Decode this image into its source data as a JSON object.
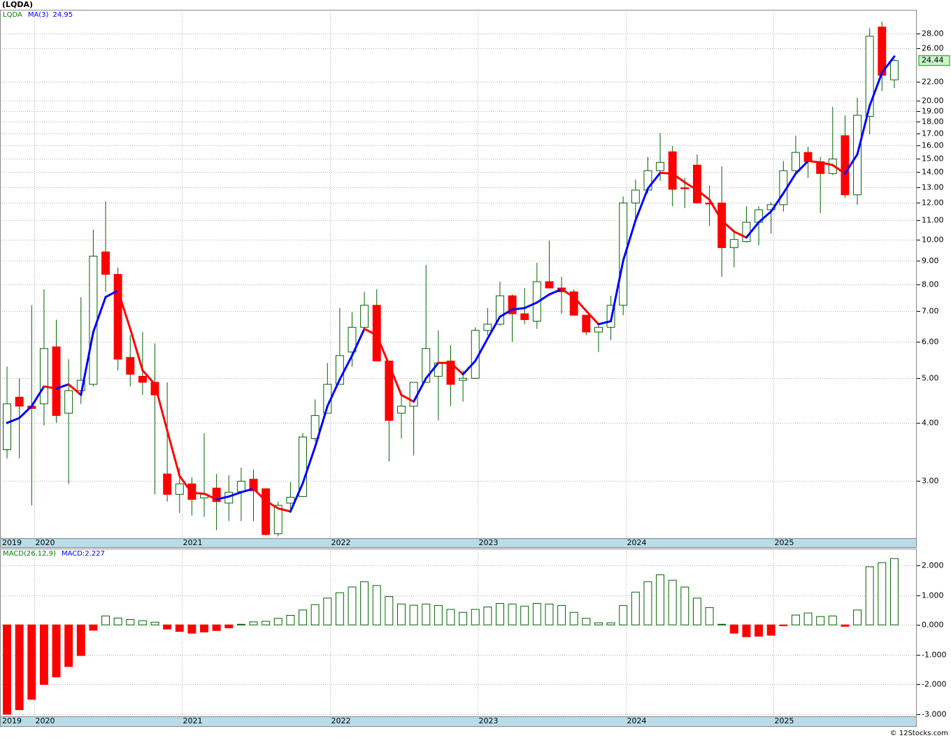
{
  "chart_data": [
    {
      "type": "candlestick",
      "title": "(LQDA)",
      "ticker": "LQDA",
      "ticker_color": "#008000",
      "log": true,
      "grid": true,
      "candle_colors": {
        "up": "#ffffff",
        "down": "#ff0000",
        "edge": "#006400"
      },
      "xlim": [
        -0.57,
        73.82
      ],
      "xticks": [
        {
          "value": 0,
          "label": "2019"
        },
        {
          "value": 3,
          "label": "2020"
        },
        {
          "value": 15,
          "label": "2021"
        },
        {
          "value": 27,
          "label": "2022"
        },
        {
          "value": 39,
          "label": "2023"
        },
        {
          "value": 51,
          "label": "2024"
        },
        {
          "value": 63,
          "label": "2025"
        }
      ],
      "ylim": [
        2.25,
        31.5
      ],
      "yticks": [
        {
          "value": 3,
          "label": "3.00"
        },
        {
          "value": 4,
          "label": "4.00"
        },
        {
          "value": 5,
          "label": "5.00"
        },
        {
          "value": 6,
          "label": "6.00"
        },
        {
          "value": 7,
          "label": "7.00"
        },
        {
          "value": 8,
          "label": "8.00"
        },
        {
          "value": 9,
          "label": "9.00"
        },
        {
          "value": 10,
          "label": "10.00"
        },
        {
          "value": 11,
          "label": "11.00"
        },
        {
          "value": 12,
          "label": "12.00"
        },
        {
          "value": 13,
          "label": "13.00"
        },
        {
          "value": 14,
          "label": "14.00"
        },
        {
          "value": 15,
          "label": "15.00"
        },
        {
          "value": 16,
          "label": "16.00"
        },
        {
          "value": 17,
          "label": "17.00"
        },
        {
          "value": 18,
          "label": "18.00"
        },
        {
          "value": 19,
          "label": "19.00"
        },
        {
          "value": 20,
          "label": "20.00"
        },
        {
          "value": 22,
          "label": "22.00"
        },
        {
          "value": 26,
          "label": "26.00"
        },
        {
          "value": 28,
          "label": "28.00"
        }
      ],
      "open": [
        3.5,
        4.55,
        4.35,
        4.4,
        5.85,
        4.2,
        4.7,
        4.85,
        9.4,
        8.4,
        5.55,
        5.05,
        4.9,
        3.1,
        2.8,
        2.95,
        2.75,
        2.89,
        2.68,
        2.84,
        3.02,
        2.88,
        2.3,
        2.68,
        2.77,
        3.7,
        4.2,
        4.85,
        5.7,
        6.45,
        7.2,
        5.45,
        4.2,
        4.35,
        4.9,
        5.05,
        5.45,
        4.95,
        5.0,
        6.35,
        6.55,
        7.55,
        6.9,
        6.65,
        8.1,
        7.85,
        7.7,
        6.85,
        6.3,
        6.45,
        7.2,
        12.0,
        12.8,
        14.1,
        15.5,
        12.95,
        14.5,
        12.0,
        12.0,
        9.6,
        9.9,
        10.9,
        11.6,
        11.9,
        14.1,
        15.45,
        14.75,
        13.9,
        16.8,
        12.5,
        18.5,
        28.9,
        22.2
      ],
      "high": [
        5.3,
        5.0,
        7.2,
        7.8,
        6.7,
        5.5,
        7.5,
        10.5,
        12.1,
        8.7,
        6.2,
        6.3,
        5.95,
        4.9,
        3.2,
        3.05,
        3.8,
        3.1,
        3.08,
        3.2,
        3.17,
        2.88,
        2.7,
        2.98,
        3.8,
        4.5,
        5.4,
        7.1,
        6.95,
        7.7,
        7.8,
        5.45,
        4.65,
        4.9,
        8.8,
        6.35,
        5.9,
        5.2,
        6.45,
        7.1,
        8.1,
        7.6,
        7.85,
        8.9,
        9.95,
        8.3,
        7.8,
        6.85,
        6.6,
        7.55,
        12.4,
        13.5,
        15.1,
        17.0,
        15.95,
        13.6,
        15.3,
        13.1,
        14.4,
        10.5,
        11.8,
        11.8,
        12.05,
        14.8,
        16.8,
        15.9,
        15.1,
        19.4,
        18.6,
        20.3,
        28.7,
        29.7,
        24.6
      ],
      "low": [
        3.35,
        3.35,
        2.65,
        3.95,
        4.0,
        2.95,
        4.4,
        4.8,
        7.7,
        5.2,
        4.8,
        4.6,
        2.8,
        2.7,
        2.55,
        2.52,
        2.5,
        2.34,
        2.45,
        2.45,
        2.45,
        2.28,
        2.27,
        2.55,
        2.77,
        3.65,
        4.2,
        4.85,
        5.3,
        6.4,
        5.45,
        3.3,
        3.7,
        3.4,
        4.9,
        4.05,
        4.35,
        4.45,
        4.98,
        6.2,
        6.5,
        6.0,
        6.55,
        6.4,
        7.85,
        6.9,
        6.85,
        6.2,
        5.7,
        6.05,
        6.85,
        11.0,
        12.6,
        13.4,
        11.8,
        11.7,
        11.95,
        10.7,
        8.3,
        8.7,
        9.85,
        9.7,
        10.3,
        11.5,
        13.8,
        13.6,
        11.4,
        13.8,
        12.3,
        11.9,
        16.9,
        21.0,
        21.3
      ],
      "close": [
        4.4,
        4.35,
        4.3,
        5.8,
        4.15,
        4.7,
        4.95,
        9.2,
        8.4,
        5.5,
        5.1,
        4.9,
        4.6,
        2.8,
        2.95,
        2.73,
        2.8,
        2.7,
        2.83,
        2.99,
        2.85,
        2.29,
        2.65,
        2.76,
        3.73,
        4.15,
        4.85,
        5.6,
        6.45,
        7.2,
        5.45,
        4.05,
        4.35,
        4.9,
        5.8,
        5.4,
        4.85,
        5.0,
        6.35,
        6.55,
        7.55,
        6.9,
        6.7,
        8.1,
        7.85,
        7.7,
        6.85,
        6.3,
        6.45,
        7.2,
        12.0,
        12.8,
        14.1,
        14.7,
        12.85,
        12.9,
        12.0,
        11.95,
        9.6,
        10.0,
        10.9,
        11.6,
        11.9,
        14.1,
        15.45,
        14.75,
        13.9,
        14.95,
        12.5,
        18.6,
        27.6,
        22.7,
        24.44
      ],
      "ma": {
        "name": "MA(3)",
        "color": "#0000ff",
        "down_color": "#ff0000",
        "values": [
          4.0,
          4.1,
          4.35,
          4.8,
          4.75,
          4.85,
          4.6,
          6.3,
          7.5,
          7.75,
          6.4,
          5.2,
          4.85,
          3.85,
          3.07,
          2.82,
          2.81,
          2.73,
          2.77,
          2.83,
          2.88,
          2.71,
          2.61,
          2.57,
          2.96,
          3.55,
          4.35,
          4.97,
          5.6,
          6.4,
          6.2,
          5.35,
          4.6,
          4.45,
          5.0,
          5.4,
          5.4,
          5.1,
          5.45,
          6.1,
          6.8,
          7.05,
          7.1,
          7.3,
          7.6,
          7.8,
          7.5,
          7.0,
          6.55,
          6.65,
          9.0,
          11.0,
          12.9,
          13.95,
          13.9,
          13.3,
          12.8,
          12.2,
          11.0,
          10.4,
          10.1,
          10.9,
          11.5,
          12.6,
          13.9,
          14.8,
          14.7,
          14.5,
          13.9,
          15.3,
          19.5,
          23.0,
          24.95
        ]
      }
    },
    {
      "type": "bar",
      "title": "MACD(26,12,9)",
      "legend_label": "MACD:",
      "legend_color": "#0000ff",
      "colors": {
        "positive": "#ffffff",
        "positive_edge": "#006400",
        "negative": "#ff0000"
      },
      "grid": true,
      "ylim": [
        -3.07,
        2.56
      ],
      "yticks": [
        {
          "value": 2,
          "label": "2.000"
        },
        {
          "value": 1,
          "label": "1.000"
        },
        {
          "value": 0,
          "label": "0.000"
        },
        {
          "value": -1,
          "label": "-1.000"
        },
        {
          "value": -2,
          "label": "-2.000"
        },
        {
          "value": -3,
          "label": "-3.000"
        }
      ],
      "values": [
        -3.0,
        -2.85,
        -2.5,
        -2.0,
        -1.75,
        -1.4,
        -1.03,
        -0.18,
        0.3,
        0.23,
        0.18,
        0.14,
        0.09,
        -0.14,
        -0.22,
        -0.28,
        -0.24,
        -0.19,
        -0.1,
        0.02,
        0.1,
        0.12,
        0.22,
        0.32,
        0.5,
        0.68,
        0.9,
        1.08,
        1.27,
        1.45,
        1.32,
        0.95,
        0.7,
        0.66,
        0.7,
        0.65,
        0.52,
        0.42,
        0.52,
        0.6,
        0.72,
        0.7,
        0.63,
        0.72,
        0.7,
        0.65,
        0.42,
        0.22,
        0.07,
        0.07,
        0.65,
        1.1,
        1.45,
        1.68,
        1.5,
        1.27,
        0.9,
        0.58,
        0.02,
        -0.28,
        -0.4,
        -0.38,
        -0.35,
        -0.03,
        0.33,
        0.4,
        0.28,
        0.3,
        -0.05,
        0.5,
        1.95,
        2.09,
        2.227
      ]
    }
  ],
  "footer": "© 12Stocks.com"
}
